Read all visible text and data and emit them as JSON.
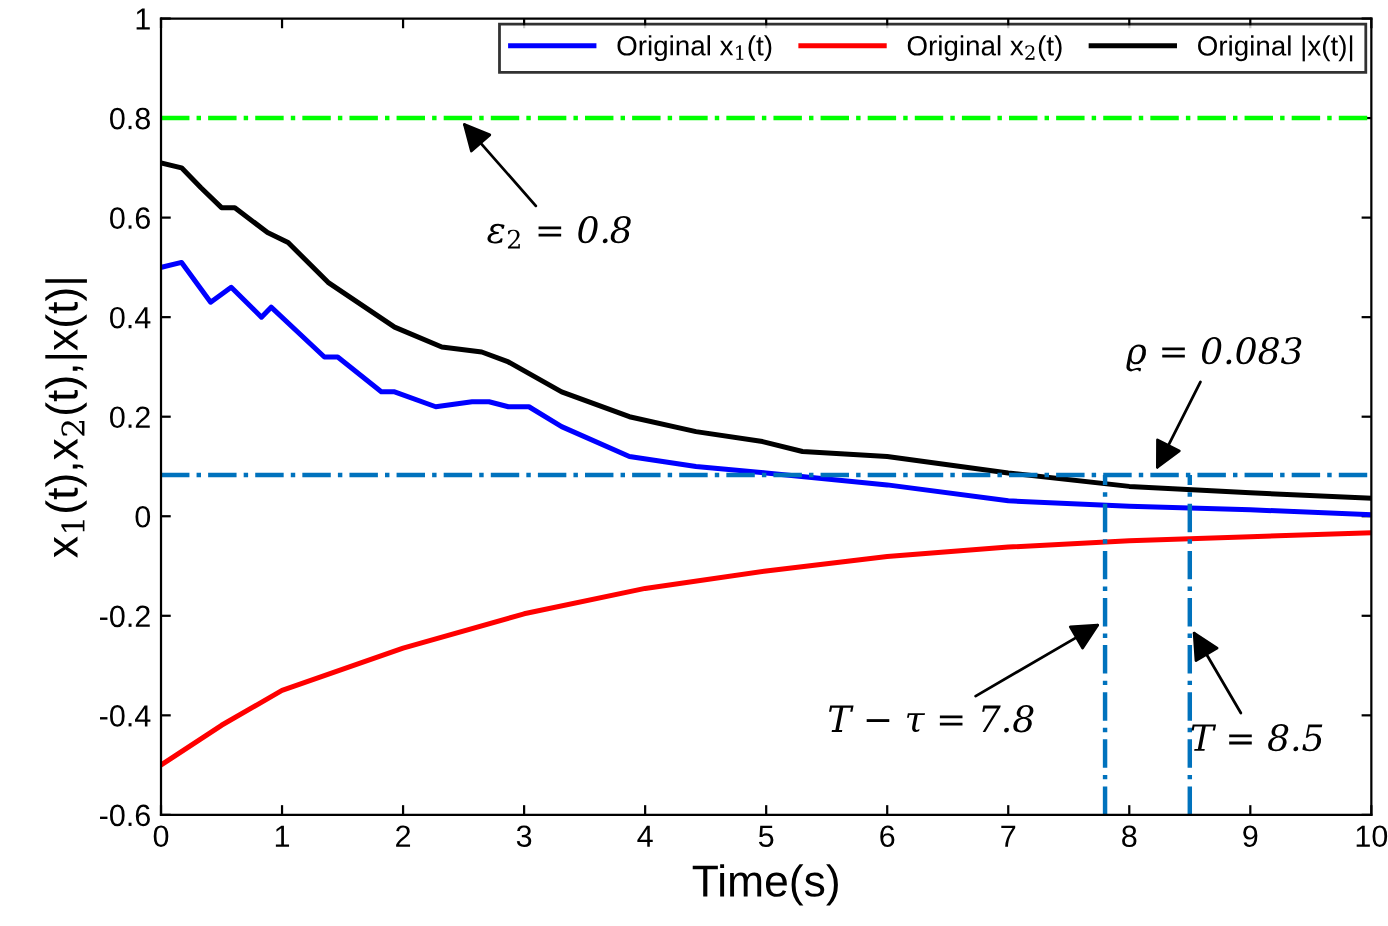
{
  "chart_data": {
    "type": "line",
    "xlabel": "Time(s)",
    "ylabel": "x$_{1}$(t),x$_{2}$(t),|x(t)|",
    "xlim": [
      0,
      10
    ],
    "ylim": [
      -0.6,
      1
    ],
    "xticks": [
      0,
      1,
      2,
      3,
      4,
      5,
      6,
      7,
      8,
      9,
      10
    ],
    "yticks": [
      -0.6,
      -0.4,
      -0.2,
      0,
      0.2,
      0.4,
      0.6,
      0.8,
      1
    ],
    "grid": false,
    "legend": "top right",
    "line_style": "solid",
    "marker": "none",
    "series": [
      {
        "name": "Original x$_{1}$(t)",
        "color": "#0000ff",
        "x": [
          0,
          0.17,
          0.41,
          0.58,
          0.83,
          0.91,
          1.35,
          1.46,
          1.82,
          1.93,
          2.27,
          2.57,
          2.71,
          2.87,
          3.04,
          3.31,
          3.87,
          4.42,
          5,
          6,
          7,
          8,
          9,
          10
        ],
        "values": [
          0.5,
          0.51,
          0.43,
          0.46,
          0.4,
          0.42,
          0.32,
          0.32,
          0.25,
          0.25,
          0.22,
          0.23,
          0.23,
          0.22,
          0.22,
          0.18,
          0.12,
          0.1,
          0.087,
          0.063,
          0.031,
          0.02,
          0.013,
          0.003
        ]
      },
      {
        "name": "Original x$_{2}$(t)",
        "color": "#ff0000",
        "x": [
          0,
          0.5,
          1,
          2,
          3,
          4,
          5,
          6,
          7,
          8,
          9,
          10
        ],
        "values": [
          -0.5,
          -0.42,
          -0.35,
          -0.265,
          -0.196,
          -0.145,
          -0.11,
          -0.081,
          -0.062,
          -0.049,
          -0.041,
          -0.033
        ]
      },
      {
        "name": "Original |x(t)|",
        "color": "#000000",
        "x": [
          0,
          0.17,
          0.33,
          0.5,
          0.61,
          0.88,
          1.05,
          1.38,
          1.93,
          2.32,
          2.65,
          2.87,
          3.31,
          3.87,
          4.42,
          4.97,
          5.3,
          6,
          7,
          8,
          9,
          10
        ],
        "values": [
          0.71,
          0.7,
          0.66,
          0.62,
          0.62,
          0.57,
          0.55,
          0.47,
          0.38,
          0.34,
          0.33,
          0.31,
          0.25,
          0.2,
          0.17,
          0.15,
          0.13,
          0.12,
          0.087,
          0.06,
          0.047,
          0.036
        ]
      }
    ],
    "ref_lines": [
      {
        "axis": "y",
        "value": 0.8,
        "color": "#00ff00",
        "line_style": "dashdot"
      },
      {
        "axis": "y",
        "value": 0.083,
        "color": "#0072bd",
        "line_style": "dashdot"
      },
      {
        "axis": "x",
        "value": 7.8,
        "color": "#0072bd",
        "line_style": "dashdot"
      },
      {
        "axis": "x",
        "value": 8.5,
        "color": "#0072bd",
        "line_style": "dashdot"
      }
    ],
    "annotations": [
      {
        "text": "ε$_{2}$ = 0.8",
        "x": 2.46,
        "y": 0.8
      },
      {
        "text": "ϱ = 0.083",
        "x": 8.2,
        "y": 0.083
      },
      {
        "text": "T − τ = 7.8",
        "x": 7.8,
        "y": -0.21
      },
      {
        "text": "T = 8.5",
        "x": 8.5,
        "y": -0.22
      }
    ]
  }
}
